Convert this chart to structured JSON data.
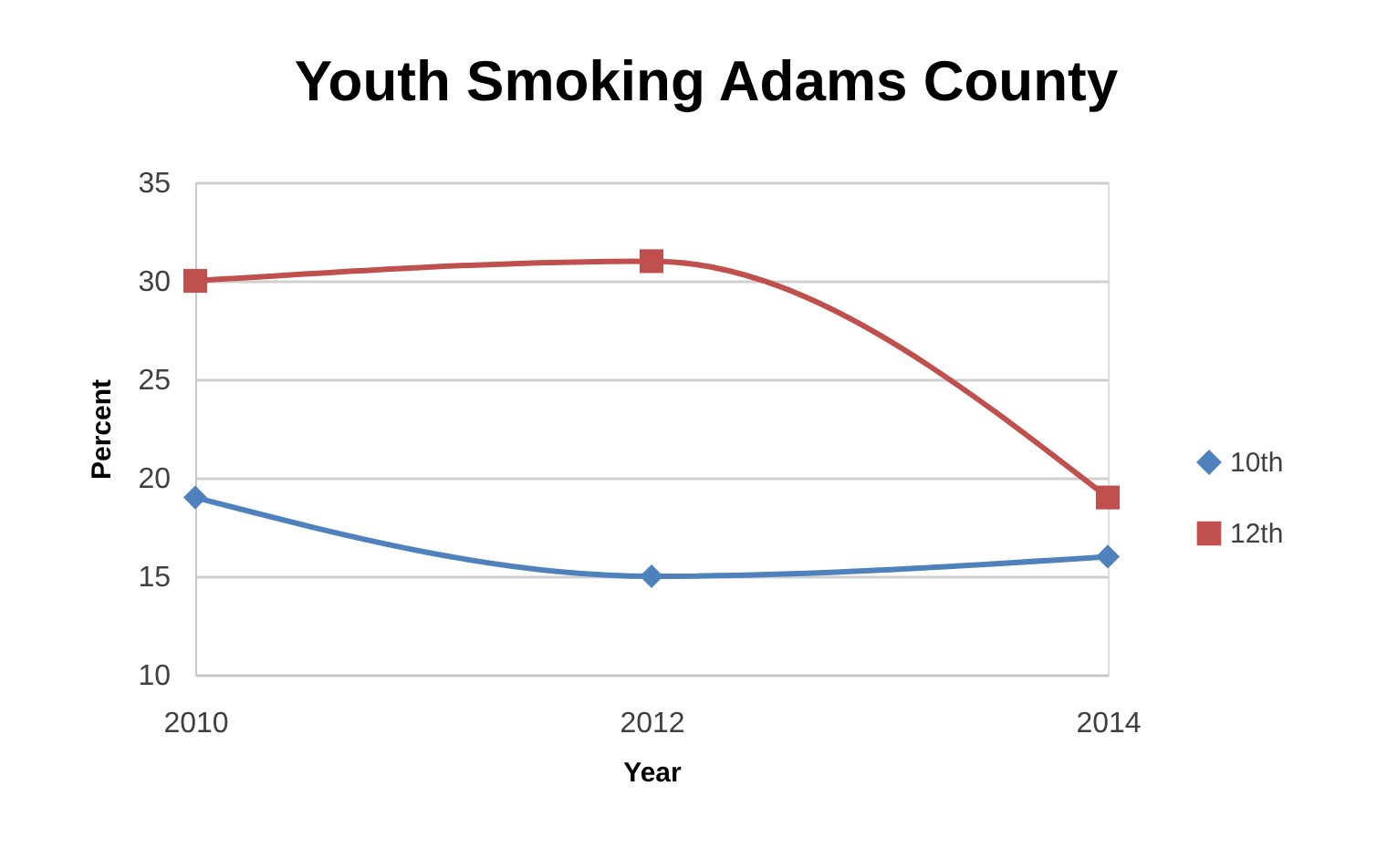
{
  "chart_data": {
    "type": "line",
    "title": "Youth Smoking Adams County",
    "xlabel": "Year",
    "ylabel": "Percent",
    "x": [
      2010,
      2012,
      2014
    ],
    "series": [
      {
        "name": "10th",
        "color": "#4f81bd",
        "values": [
          19,
          15,
          16
        ],
        "marker": "diamond"
      },
      {
        "name": "12th",
        "color": "#c0504d",
        "values": [
          30,
          31,
          19
        ],
        "marker": "square"
      }
    ],
    "xlim": [
      2010,
      2014
    ],
    "xticks": [
      2010,
      2012,
      2014
    ],
    "ylim": [
      10,
      35
    ],
    "yticks": [
      10,
      15,
      20,
      25,
      30,
      35
    ],
    "grid": "y",
    "legend": "right",
    "line_style": "solid"
  }
}
